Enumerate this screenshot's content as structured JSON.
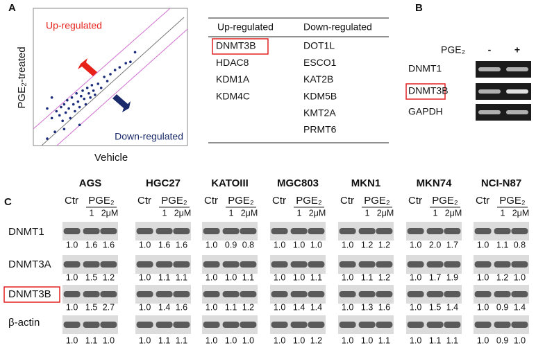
{
  "chart_data": {
    "type": "scatter",
    "panel_label": "A",
    "xlabel": "Vehicle",
    "ylabel": "PGE₂-treated",
    "annotations": [
      "Up-regulated",
      "Down-regulated"
    ],
    "color": "#1a2a7a",
    "xlim": [
      0,
      100
    ],
    "ylim": [
      0,
      100
    ],
    "x": [
      9,
      12,
      14,
      15,
      17,
      18,
      19,
      20,
      21,
      22,
      23,
      24,
      25,
      26,
      27,
      28,
      29,
      30,
      31,
      32,
      33,
      34,
      35,
      36,
      37,
      38,
      39,
      40,
      42,
      44,
      46,
      48,
      50,
      53,
      56,
      60,
      63,
      66,
      9,
      30,
      20,
      12
    ],
    "y": [
      27,
      20,
      10,
      25,
      22,
      28,
      18,
      30,
      24,
      33,
      27,
      20,
      35,
      30,
      25,
      38,
      32,
      28,
      36,
      40,
      34,
      30,
      42,
      38,
      35,
      44,
      40,
      37,
      45,
      42,
      50,
      47,
      52,
      55,
      57,
      60,
      61,
      68,
      5,
      15,
      12,
      35
    ]
  },
  "table": {
    "headers": [
      "Up-regulated",
      "Down-regulated"
    ],
    "up": [
      "DNMT3B",
      "HDAC8",
      "KDM1A",
      "KDM4C"
    ],
    "down": [
      "DOT1L",
      "ESCO1",
      "KAT2B",
      "KDM5B",
      "KMT2A",
      "PRMT6"
    ]
  },
  "panel_b": {
    "label": "B",
    "treatment": "PGE₂",
    "lanes": [
      "-",
      "+"
    ],
    "genes": [
      "DNMT1",
      "DNMT3B",
      "GAPDH"
    ]
  },
  "panel_c": {
    "label": "C",
    "rows": [
      "DNMT1",
      "DNMT3A",
      "DNMT3B",
      "β-actin"
    ],
    "cell_lines": [
      {
        "name": "AGS",
        "control": "Ctr",
        "treatment": "PGE₂",
        "doses": [
          "1",
          "2μM"
        ],
        "values": [
          [
            "1.0",
            "1.6",
            "1.6"
          ],
          [
            "1.0",
            "1.5",
            "1.2"
          ],
          [
            "1.0",
            "1.5",
            "2.7"
          ],
          [
            "1.0",
            "1.1",
            "1.0"
          ]
        ]
      },
      {
        "name": "HGC27",
        "control": "Ctr",
        "treatment": "PGE₂",
        "doses": [
          "1",
          "2μM"
        ],
        "values": [
          [
            "1.0",
            "1.6",
            "1.6"
          ],
          [
            "1.0",
            "1.1",
            "1.1"
          ],
          [
            "1.0",
            "1.4",
            "1.6"
          ],
          [
            "1.0",
            "1.1",
            "1.1"
          ]
        ]
      },
      {
        "name": "KATOIII",
        "control": "Ctr",
        "treatment": "PGE₂",
        "doses": [
          "1",
          "2μM"
        ],
        "values": [
          [
            "1.0",
            "0.9",
            "0.8"
          ],
          [
            "1.0",
            "1.0",
            "1.1"
          ],
          [
            "1.0",
            "1.1",
            "1.2"
          ],
          [
            "1.0",
            "1.0",
            "1.0"
          ]
        ]
      },
      {
        "name": "MGC803",
        "control": "Ctr",
        "treatment": "PGE₂",
        "doses": [
          "1",
          "2μM"
        ],
        "values": [
          [
            "1.0",
            "1.0",
            "1.0"
          ],
          [
            "1.0",
            "1.0",
            "1.1"
          ],
          [
            "1.0",
            "1.4",
            "1.4"
          ],
          [
            "1.0",
            "1.0",
            "1.2"
          ]
        ]
      },
      {
        "name": "MKN1",
        "control": "Ctr",
        "treatment": "PGE₂",
        "doses": [
          "1",
          "2μM"
        ],
        "values": [
          [
            "1.0",
            "1.2",
            "1.2"
          ],
          [
            "1.0",
            "1.1",
            "1.2"
          ],
          [
            "1.0",
            "1.3",
            "1.6"
          ],
          [
            "1.0",
            "1.0",
            "1.1"
          ]
        ]
      },
      {
        "name": "MKN74",
        "control": "Ctr",
        "treatment": "PGE₂",
        "doses": [
          "1",
          "2μM"
        ],
        "values": [
          [
            "1.0",
            "2.0",
            "1.7"
          ],
          [
            "1.0",
            "1.7",
            "1.9"
          ],
          [
            "1.0",
            "1.5",
            "1.4"
          ],
          [
            "1.0",
            "1.1",
            "1.1"
          ]
        ]
      },
      {
        "name": "NCI-N87",
        "control": "Ctr",
        "treatment": "PGE₂",
        "doses": [
          "1",
          "2μM"
        ],
        "values": [
          [
            "1.0",
            "1.1",
            "0.8"
          ],
          [
            "1.0",
            "1.2",
            "1.0"
          ],
          [
            "1.0",
            "0.9",
            "1.4"
          ],
          [
            "1.0",
            "0.9",
            "1.0"
          ]
        ]
      }
    ]
  }
}
